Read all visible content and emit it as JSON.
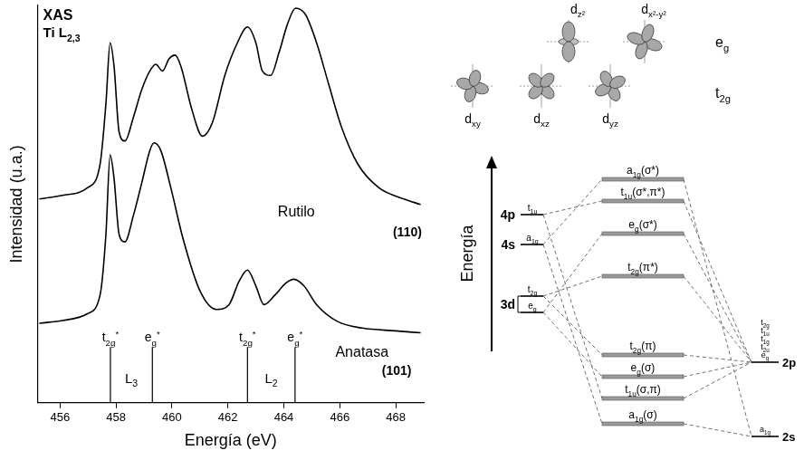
{
  "chart_data": {
    "type": "line",
    "title": "XAS",
    "subtitle": "Ti L2,3",
    "x_label": "Energía (eV)",
    "y_label": "Intensidad (u.a.)",
    "xlim": [
      455.2,
      469
    ],
    "xticks": [
      456,
      458,
      460,
      462,
      464,
      466,
      468
    ],
    "ylim": [
      0,
      10
    ],
    "tick_labels": "x",
    "grid": false,
    "series": [
      {
        "name": "Rutilo",
        "annotation": "(110)",
        "color": "#000000",
        "x": [
          455.26,
          456.09,
          456.98,
          457.43,
          457.64,
          457.79,
          457.93,
          458.11,
          458.32,
          458.62,
          458.92,
          459.21,
          459.42,
          459.66,
          459.9,
          460.11,
          460.32,
          460.7,
          461.09,
          461.45,
          461.89,
          462.34,
          462.7,
          463.0,
          463.23,
          463.53,
          463.83,
          464.13,
          464.42,
          464.78,
          465.17,
          465.61,
          466.06,
          466.65,
          467.4,
          468.29,
          468.89
        ],
        "values": [
          5.13,
          5.22,
          5.41,
          6.0,
          7.53,
          9.06,
          8.47,
          6.82,
          6.59,
          7.18,
          7.88,
          8.35,
          8.52,
          8.35,
          8.66,
          8.75,
          8.47,
          7.41,
          6.71,
          7.06,
          8.24,
          9.06,
          9.46,
          9.06,
          8.35,
          8.24,
          8.82,
          9.53,
          9.93,
          9.76,
          9.06,
          8.0,
          6.94,
          6.0,
          5.41,
          5.13,
          4.99
        ]
      },
      {
        "name": "Anatasa",
        "annotation": "(101)",
        "color": "#000000",
        "x": [
          455.26,
          456.09,
          456.98,
          457.43,
          457.64,
          457.79,
          457.93,
          458.11,
          458.32,
          458.62,
          458.92,
          459.21,
          459.36,
          459.6,
          459.96,
          460.4,
          461.0,
          461.6,
          462.04,
          462.4,
          462.7,
          463.0,
          463.29,
          463.68,
          464.07,
          464.36,
          464.72,
          465.17,
          465.91,
          466.8,
          467.99,
          468.89
        ],
        "values": [
          2.0,
          2.07,
          2.24,
          2.71,
          4.24,
          6.24,
          5.65,
          4.24,
          4.05,
          4.71,
          5.53,
          6.35,
          6.54,
          6.35,
          5.41,
          4.12,
          2.82,
          2.35,
          2.47,
          3.06,
          3.34,
          2.94,
          2.47,
          2.71,
          3.01,
          3.11,
          2.94,
          2.47,
          2.05,
          1.88,
          1.81,
          1.76
        ]
      }
    ],
    "edges": [
      {
        "name": "L3",
        "lines": [
          {
            "x": 457.8,
            "label": "t2g*"
          },
          {
            "x": 459.3,
            "label": "eg*"
          }
        ]
      },
      {
        "name": "L2",
        "lines": [
          {
            "x": 462.7,
            "label": "t2g*"
          },
          {
            "x": 464.4,
            "label": "eg*"
          }
        ]
      }
    ]
  },
  "diagram": {
    "orbital_groups": [
      {
        "name": "eg",
        "orbitals": [
          "dz²",
          "dx²-y²"
        ]
      },
      {
        "name": "t2g",
        "orbitals": [
          "dxy",
          "dxz",
          "dyz"
        ]
      }
    ],
    "energy_axis": "Energía",
    "metal": [
      {
        "label": "4p",
        "levels": [
          "t1u"
        ]
      },
      {
        "label": "4s",
        "levels": [
          "a1g"
        ]
      },
      {
        "label": "3d",
        "levels": [
          "t2g",
          "eg"
        ]
      }
    ],
    "molecular_orbitals": [
      "a1g(σ*)",
      "t1u(σ*,π*)",
      "eg(σ*)",
      "t2g(π*)",
      "t2g(π)",
      "eg(σ)",
      "t1u(σ,π)",
      "a1g(σ)"
    ],
    "ligand": [
      {
        "label": "2p",
        "levels": [
          "t2g",
          "t1u",
          "t1g",
          "t2u",
          "eg"
        ]
      },
      {
        "label": "2s",
        "levels": [
          "a1g"
        ]
      }
    ]
  }
}
